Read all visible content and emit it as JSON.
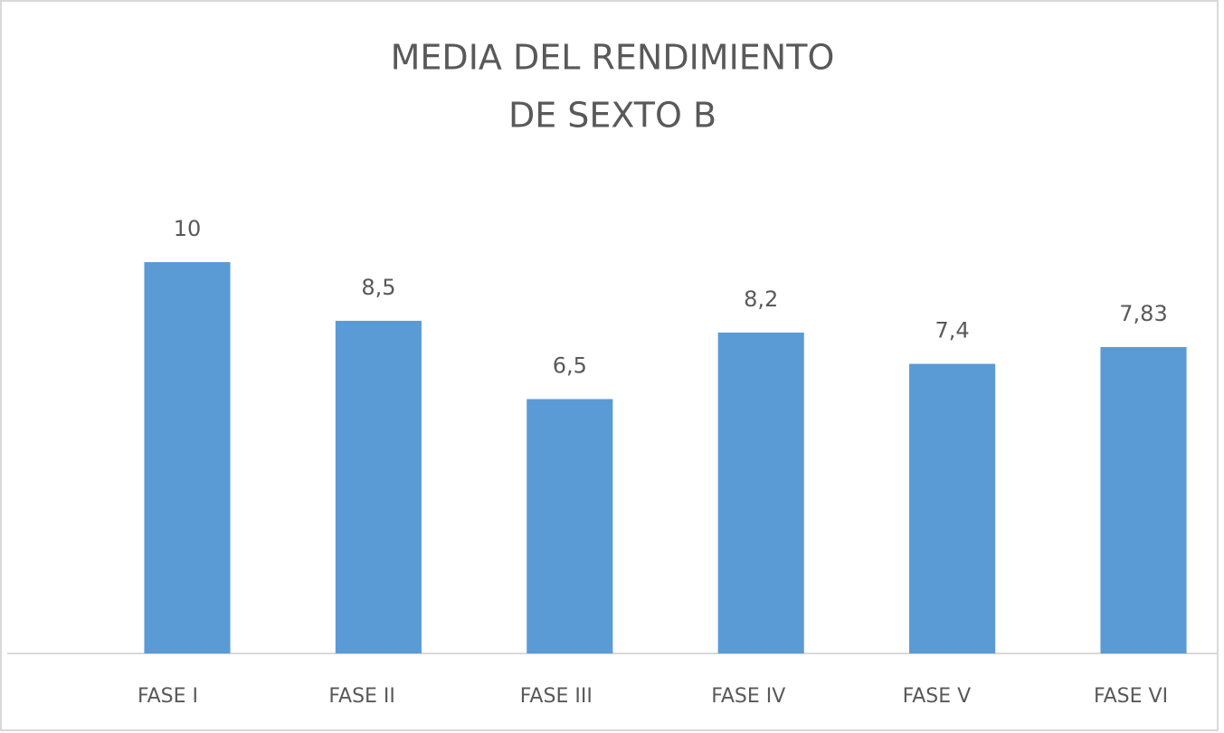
{
  "chart_data": {
    "type": "bar",
    "title": [
      "MEDIA DEL RENDIMIENTO",
      "DE SEXTO B"
    ],
    "categories": [
      "FASE I",
      "FASE II",
      "FASE III",
      "FASE IV",
      "FASE V",
      "FASE VI"
    ],
    "values": [
      10,
      8.5,
      6.5,
      8.2,
      7.4,
      7.83
    ],
    "value_labels": [
      "10",
      "8,5",
      "6,5",
      "8,2",
      "7,4",
      "7,83"
    ],
    "color": "#5b9bd5",
    "ylim": [
      0,
      10
    ],
    "grid": false
  }
}
